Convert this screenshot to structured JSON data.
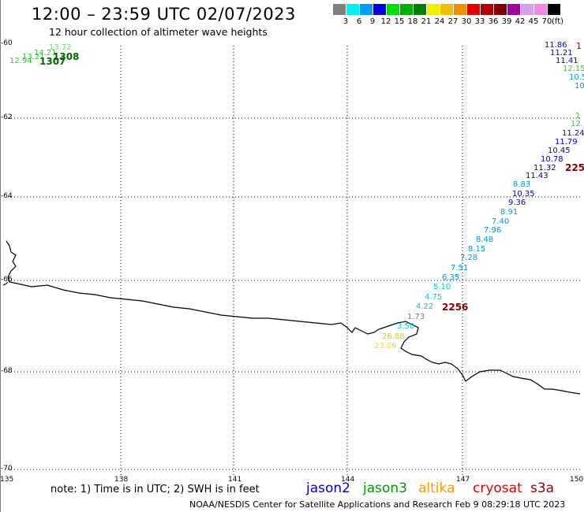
{
  "title": "12:00 – 23:59 UTC 02/07/2023",
  "subtitle": "12 hour collection of altimeter wave heights",
  "legend": {
    "unit": "(ft)",
    "items": [
      {
        "label": "3",
        "color": "#808080"
      },
      {
        "label": "6",
        "color": "#00f0f0"
      },
      {
        "label": "9",
        "color": "#00a0f0"
      },
      {
        "label": "12",
        "color": "#0000e0"
      },
      {
        "label": "15",
        "color": "#00e000"
      },
      {
        "label": "18",
        "color": "#00b000"
      },
      {
        "label": "21",
        "color": "#008000"
      },
      {
        "label": "24",
        "color": "#f0f000"
      },
      {
        "label": "27",
        "color": "#f0c000"
      },
      {
        "label": "30",
        "color": "#f09000"
      },
      {
        "label": "33",
        "color": "#e00000"
      },
      {
        "label": "36",
        "color": "#b00000"
      },
      {
        "label": "39",
        "color": "#800000"
      },
      {
        "label": "42",
        "color": "#a000a0"
      },
      {
        "label": "45",
        "color": "#d8a0e8"
      },
      {
        "label": "70",
        "color": "#f088e8"
      },
      {
        "label": "",
        "color": "#000000"
      }
    ]
  },
  "axes": {
    "lat_labels": [
      "-60",
      "-62",
      "-64",
      "-66",
      "-68",
      "-70"
    ],
    "lon_labels": [
      "135",
      "138",
      "141",
      "144",
      "147",
      "150"
    ]
  },
  "observations": [
    {
      "text": "12.94",
      "color": "#33cc33"
    },
    {
      "text": "13.21",
      "color": "#33cc33"
    },
    {
      "text": "14.21",
      "color": "#33cc33"
    },
    {
      "text": "13.72",
      "color": "#66dd66"
    },
    {
      "text": "1307",
      "color": "#006600"
    },
    {
      "text": "1308",
      "color": "#006600"
    },
    {
      "text": "11.86",
      "color": "#0000bb"
    },
    {
      "text": "11.21",
      "color": "#0000bb"
    },
    {
      "text": "11.41",
      "color": "#0000bb"
    },
    {
      "text": "12.15",
      "color": "#33cc33"
    },
    {
      "text": "10.5",
      "color": "#0099dd"
    },
    {
      "text": "10",
      "color": "#0099dd"
    },
    {
      "text": "1",
      "color": "#880000"
    },
    {
      "text": "1",
      "color": "#33cc33"
    },
    {
      "text": "12.",
      "color": "#33cc33"
    },
    {
      "text": "11.24",
      "color": "#0000bb"
    },
    {
      "text": "11.79",
      "color": "#0000bb"
    },
    {
      "text": "10.45",
      "color": "#0000bb"
    },
    {
      "text": "10.78",
      "color": "#0000bb"
    },
    {
      "text": "11.32",
      "color": "#0000bb"
    },
    {
      "text": "225",
      "color": "#880000"
    },
    {
      "text": "11.43",
      "color": "#0000bb"
    },
    {
      "text": "8.83",
      "color": "#0099dd"
    },
    {
      "text": "10.35",
      "color": "#0000bb"
    },
    {
      "text": "9.36",
      "color": "#0000bb"
    },
    {
      "text": "8.91",
      "color": "#0099dd"
    },
    {
      "text": "7.40",
      "color": "#0099dd"
    },
    {
      "text": "7.96",
      "color": "#0099dd"
    },
    {
      "text": "8.48",
      "color": "#0099dd"
    },
    {
      "text": "8.15",
      "color": "#0099dd"
    },
    {
      "text": "7.28",
      "color": "#0099dd"
    },
    {
      "text": "7.51",
      "color": "#0099dd"
    },
    {
      "text": "6.35",
      "color": "#0099dd"
    },
    {
      "text": "5.10",
      "color": "#00cccc"
    },
    {
      "text": "4.75",
      "color": "#00cccc"
    },
    {
      "text": "4.22",
      "color": "#00cccc"
    },
    {
      "text": "2256",
      "color": "#880000"
    },
    {
      "text": "1.73",
      "color": "#808080"
    },
    {
      "text": "3.50",
      "color": "#00cccc"
    },
    {
      "text": "26.88",
      "color": "#ddcc00"
    },
    {
      "text": "23.06",
      "color": "#eedd00"
    }
  ],
  "footer": {
    "note": "note:  1) Time is in UTC;  2) SWH is in feet",
    "satellites": [
      {
        "name": "jason2",
        "color": "#0000cc"
      },
      {
        "name": "jason3",
        "color": "#009900"
      },
      {
        "name": "altika",
        "color": "#ff9900"
      },
      {
        "name": "cryosat",
        "color": "#dd0000"
      },
      {
        "name": "s3a",
        "color": "#990000"
      }
    ],
    "credit": "NOAA/NESDIS Center for Satellite Applications and Research     Feb  9 08:29:18 UTC 2023"
  }
}
